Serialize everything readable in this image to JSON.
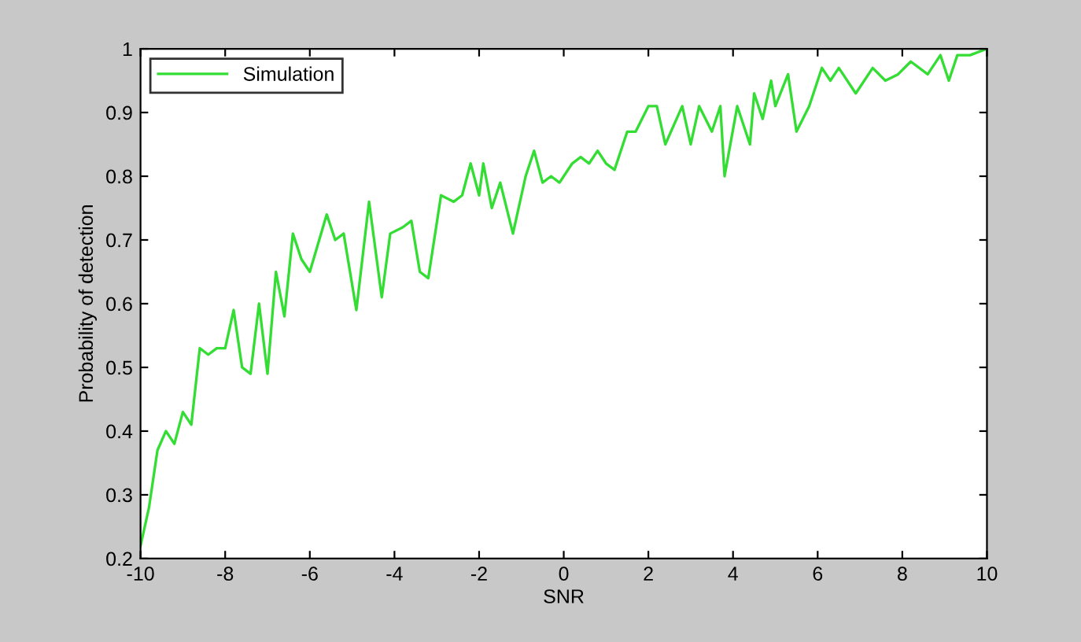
{
  "chart_data": {
    "type": "line",
    "xlabel": "SNR",
    "ylabel": "Probability of detection",
    "xlim": [
      -10,
      10
    ],
    "xticks": [
      -10,
      -8,
      -6,
      -4,
      -2,
      0,
      2,
      4,
      6,
      8,
      10
    ],
    "ylim": [
      0.2,
      1
    ],
    "yticks": [
      0.2,
      0.3,
      0.4,
      0.5,
      0.6,
      0.7,
      0.8,
      0.9,
      1
    ],
    "grid": false,
    "legend": "top left",
    "marker": "none",
    "line_style": "solid",
    "series": [
      {
        "name": "Simulation",
        "color": "#33dd33",
        "x": [
          -10,
          -9.8,
          -9.6,
          -9.4,
          -9.2,
          -9.0,
          -8.8,
          -8.6,
          -8.4,
          -8.2,
          -8.0,
          -7.8,
          -7.6,
          -7.4,
          -7.2,
          -7.0,
          -6.8,
          -6.6,
          -6.4,
          -6.2,
          -6.0,
          -5.6,
          -5.4,
          -5.2,
          -4.9,
          -4.6,
          -4.3,
          -4.1,
          -3.8,
          -3.6,
          -3.4,
          -3.2,
          -2.9,
          -2.6,
          -2.4,
          -2.2,
          -2.0,
          -1.9,
          -1.7,
          -1.5,
          -1.2,
          -0.9,
          -0.7,
          -0.5,
          -0.3,
          -0.1,
          0.2,
          0.4,
          0.6,
          0.8,
          1.0,
          1.2,
          1.5,
          1.7,
          2.0,
          2.2,
          2.4,
          2.8,
          3.0,
          3.2,
          3.5,
          3.7,
          3.8,
          4.1,
          4.4,
          4.5,
          4.7,
          4.9,
          5.0,
          5.3,
          5.5,
          5.8,
          6.1,
          6.3,
          6.5,
          6.9,
          7.3,
          7.6,
          7.9,
          8.2,
          8.6,
          8.9,
          9.1,
          9.3,
          9.6,
          10
        ],
        "values": [
          0.22,
          0.28,
          0.37,
          0.4,
          0.38,
          0.43,
          0.41,
          0.53,
          0.52,
          0.53,
          0.53,
          0.59,
          0.5,
          0.49,
          0.6,
          0.49,
          0.65,
          0.58,
          0.71,
          0.67,
          0.65,
          0.74,
          0.7,
          0.71,
          0.59,
          0.76,
          0.61,
          0.71,
          0.72,
          0.73,
          0.65,
          0.64,
          0.77,
          0.76,
          0.77,
          0.82,
          0.77,
          0.82,
          0.75,
          0.79,
          0.71,
          0.8,
          0.84,
          0.79,
          0.8,
          0.79,
          0.82,
          0.83,
          0.82,
          0.84,
          0.82,
          0.81,
          0.87,
          0.87,
          0.91,
          0.91,
          0.85,
          0.91,
          0.85,
          0.91,
          0.87,
          0.91,
          0.8,
          0.91,
          0.85,
          0.93,
          0.89,
          0.95,
          0.91,
          0.96,
          0.87,
          0.91,
          0.97,
          0.95,
          0.97,
          0.93,
          0.97,
          0.95,
          0.96,
          0.98,
          0.96,
          0.99,
          0.95,
          0.99,
          0.99,
          1.0
        ]
      }
    ]
  }
}
